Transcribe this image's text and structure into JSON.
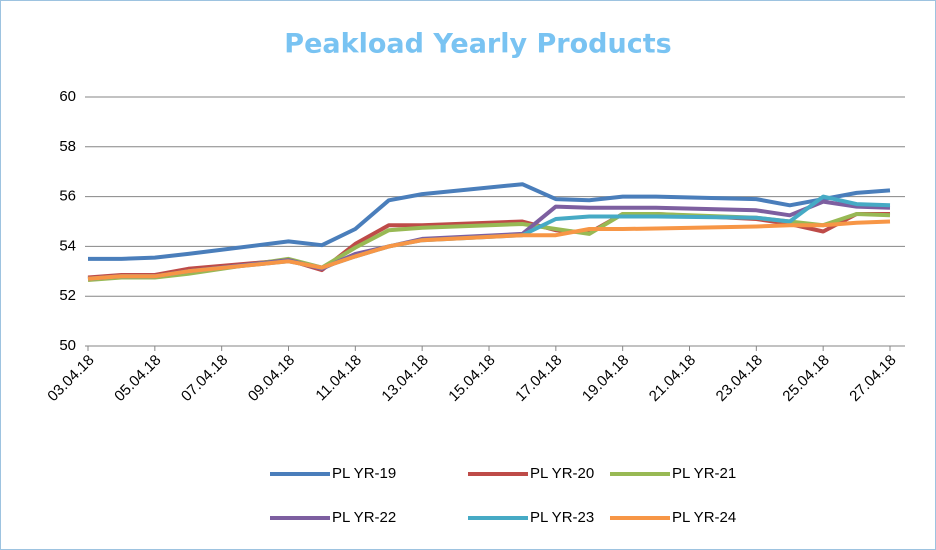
{
  "chart_data": {
    "type": "line",
    "title": "Peakload Yearly Products",
    "x": [
      "03.04.18",
      "04.04.18",
      "05.04.18",
      "06.04.18",
      "09.04.18",
      "10.04.18",
      "11.04.18",
      "12.04.18",
      "13.04.18",
      "16.04.18",
      "17.04.18",
      "18.04.18",
      "19.04.18",
      "20.04.18",
      "23.04.18",
      "24.04.18",
      "25.04.18",
      "26.04.18",
      "27.04.18"
    ],
    "xlim": [
      "03.04.18",
      "27.04.18"
    ],
    "xticks": [
      "03.04.18",
      "05.04.18",
      "07.04.18",
      "09.04.18",
      "11.04.18",
      "13.04.18",
      "15.04.18",
      "17.04.18",
      "19.04.18",
      "21.04.18",
      "23.04.18",
      "25.04.18",
      "27.04.18"
    ],
    "ylim": [
      50,
      60
    ],
    "yticks": [
      50,
      52,
      54,
      56,
      58,
      60
    ],
    "grid": true,
    "legend": "bottom",
    "series": [
      {
        "name": "PL YR-19",
        "color": "#4a7ebb",
        "values": [
          53.5,
          53.5,
          53.55,
          53.7,
          54.2,
          54.05,
          54.7,
          55.85,
          56.1,
          56.5,
          55.9,
          55.85,
          56.0,
          56.0,
          55.9,
          55.65,
          55.9,
          56.15,
          56.25
        ]
      },
      {
        "name": "PL YR-20",
        "color": "#be4b48",
        "values": [
          52.75,
          52.85,
          52.85,
          53.1,
          53.45,
          53.05,
          54.1,
          54.85,
          54.85,
          55.0,
          54.65,
          54.55,
          55.3,
          55.3,
          55.1,
          54.9,
          54.6,
          55.3,
          55.3
        ]
      },
      {
        "name": "PL YR-21",
        "color": "#98b954",
        "values": [
          52.65,
          52.75,
          52.75,
          52.9,
          53.5,
          53.15,
          53.95,
          54.65,
          54.75,
          54.9,
          54.7,
          54.5,
          55.3,
          55.3,
          55.15,
          55.0,
          54.85,
          55.3,
          55.25
        ]
      },
      {
        "name": "PL YR-22",
        "color": "#7d5fa0",
        "values": [
          52.7,
          52.8,
          52.8,
          53.0,
          53.45,
          53.1,
          53.7,
          54.0,
          54.3,
          54.5,
          55.6,
          55.55,
          55.55,
          55.55,
          55.45,
          55.25,
          55.8,
          55.6,
          55.55
        ]
      },
      {
        "name": "PL YR-23",
        "color": "#46aac5",
        "values": [
          52.7,
          52.8,
          52.8,
          53.0,
          53.4,
          53.15,
          53.6,
          54.0,
          54.25,
          54.45,
          55.1,
          55.2,
          55.2,
          55.2,
          55.15,
          55.0,
          56.0,
          55.7,
          55.65
        ]
      },
      {
        "name": "PL YR-24",
        "color": "#f79646",
        "values": [
          52.7,
          52.8,
          52.8,
          53.0,
          53.4,
          53.15,
          53.6,
          54.0,
          54.25,
          54.45,
          54.45,
          54.7,
          54.7,
          54.72,
          54.8,
          54.85,
          54.85,
          54.95,
          55.0
        ]
      }
    ]
  }
}
